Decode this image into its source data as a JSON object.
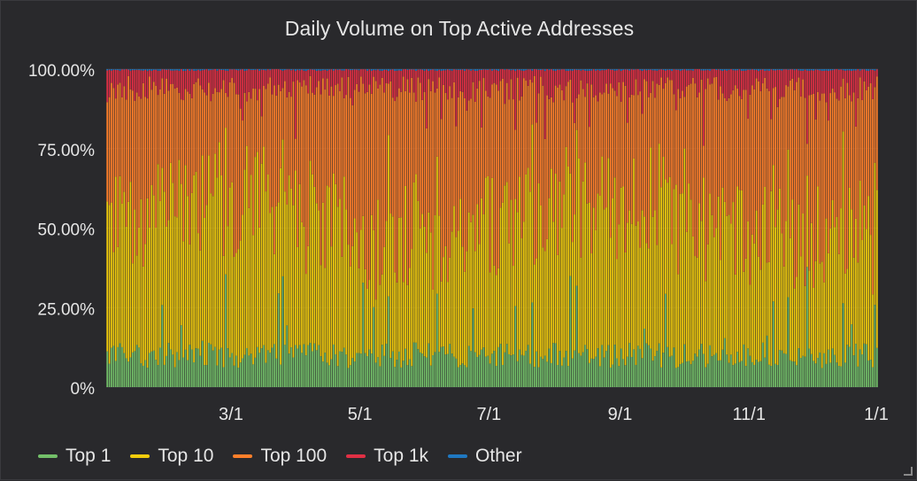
{
  "chart_data": {
    "type": "bar",
    "stacking": "percent",
    "title": "Daily Volume on Top Active Addresses",
    "xlabel": "",
    "ylabel": "",
    "ylim": [
      0,
      100
    ],
    "yticks": [
      "0%",
      "25.00%",
      "50.00%",
      "75.00%",
      "100.00%"
    ],
    "xticks": [
      "3/1",
      "5/1",
      "7/1",
      "9/1",
      "11/1",
      "1/1"
    ],
    "x_range": [
      "1/1",
      "1/1"
    ],
    "bar_count": 365,
    "legend_position": "bottom-left",
    "series": [
      {
        "name": "Top 1",
        "color": "#73bf69",
        "typical_share": [
          5,
          45
        ],
        "mean_share": 11
      },
      {
        "name": "Top 10",
        "color": "#f2cc0c",
        "typical_share": [
          10,
          70
        ],
        "mean_share": 40
      },
      {
        "name": "Top 100",
        "color": "#ff7f2a",
        "typical_share": [
          20,
          65
        ],
        "mean_share": 42
      },
      {
        "name": "Top 1k",
        "color": "#e02f44",
        "typical_share": [
          1,
          25
        ],
        "mean_share": 7
      },
      {
        "name": "Other",
        "color": "#1f78c1",
        "typical_share": [
          0,
          1
        ],
        "mean_share": 0.2
      }
    ],
    "grid": true
  },
  "theme": {
    "background": "#29292c",
    "grid_color": "#3c3c3f",
    "text_color": "#e6e6e6"
  }
}
